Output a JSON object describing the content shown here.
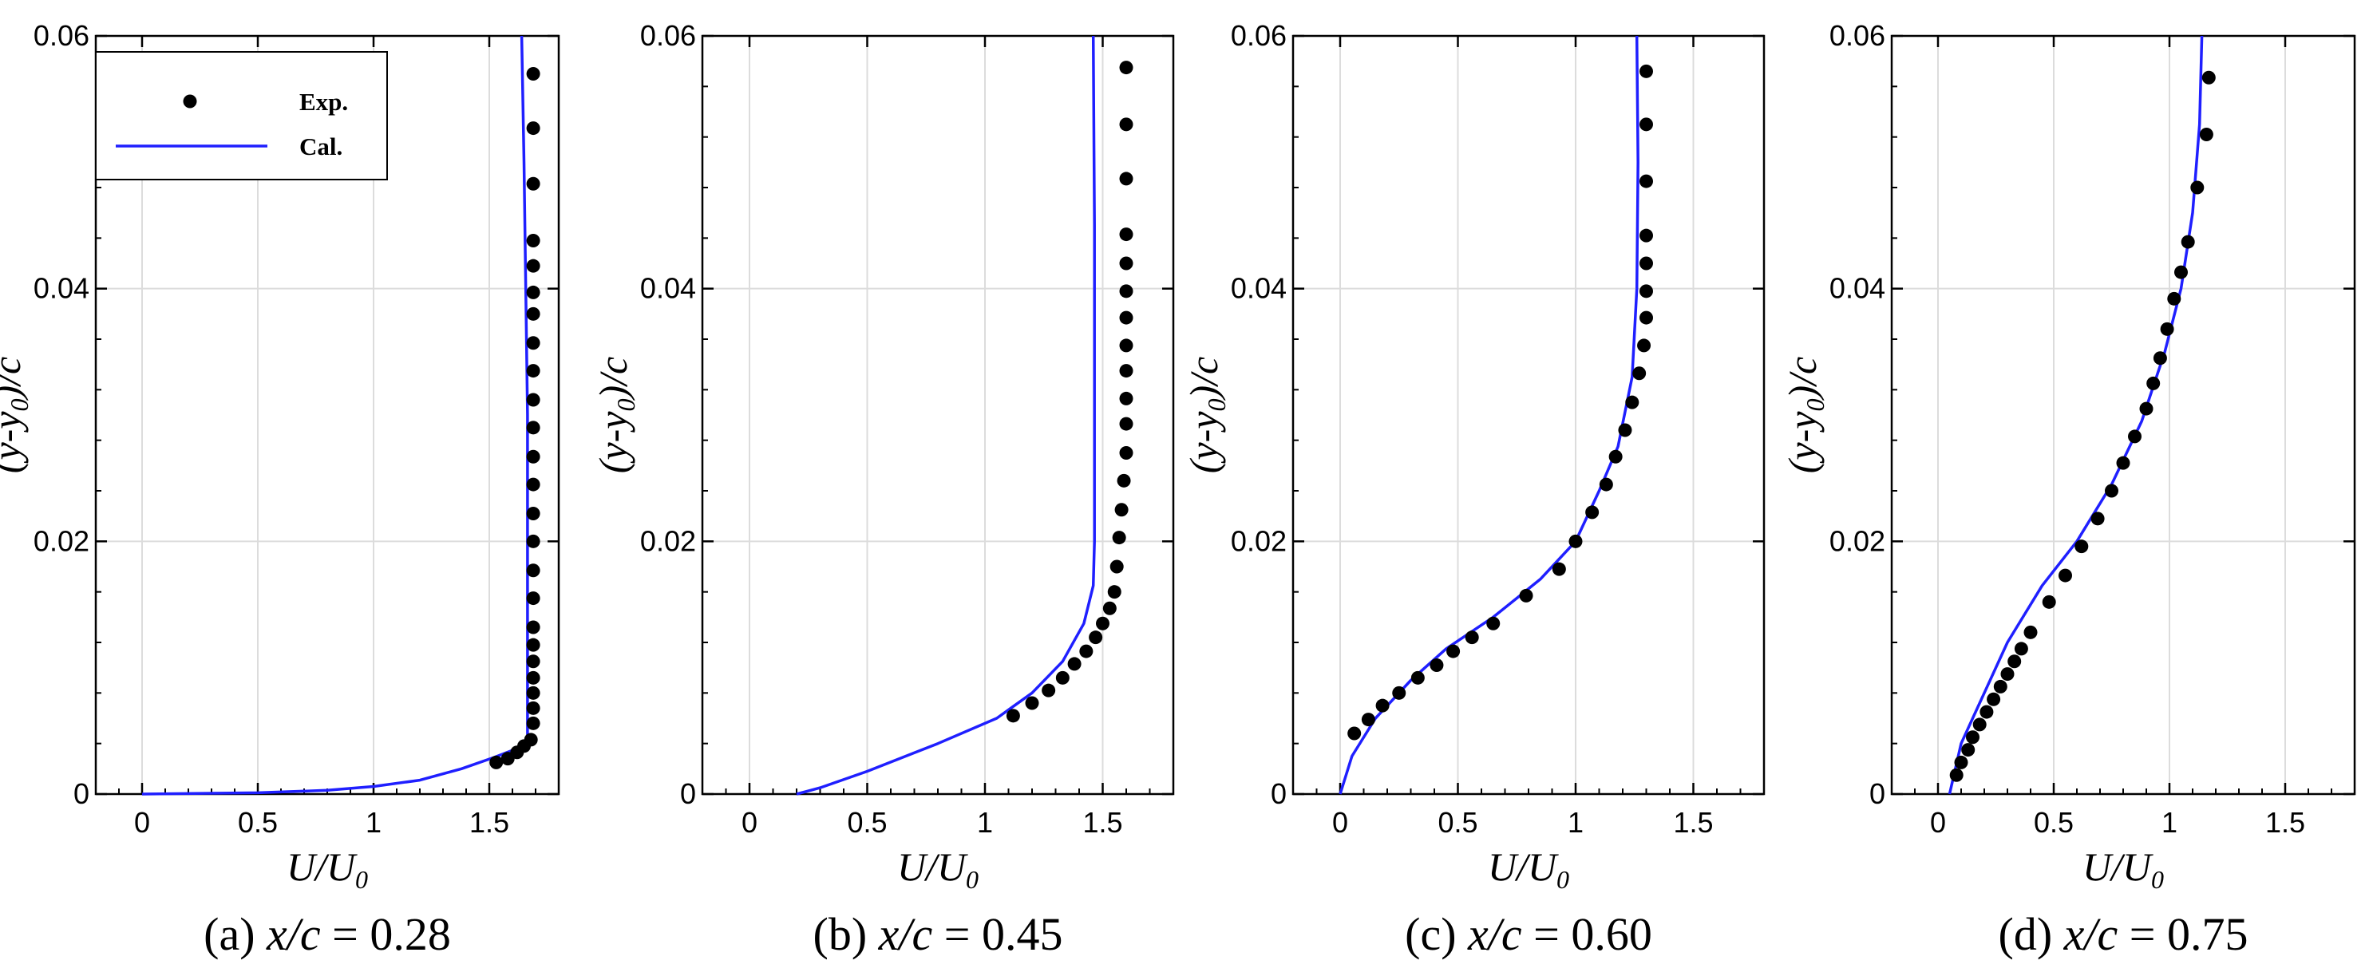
{
  "chart_data": [
    {
      "type": "scatter+line",
      "caption": {
        "prefix": "(a) ",
        "var": "x/c",
        "suffix": " = 0.28"
      },
      "xlabel": {
        "base": "U/U",
        "sub": "0"
      },
      "ylabel": {
        "pre": "(y-y",
        "sub": "0",
        "post": ")/c"
      },
      "xlim": [
        -0.2,
        1.8
      ],
      "ylim": [
        0,
        0.06
      ],
      "xticks": [
        "0",
        "0.5",
        "1",
        "1.5"
      ],
      "xtick_values": [
        0,
        0.5,
        1,
        1.5
      ],
      "yticks": [
        "0",
        "0.02",
        "0.04",
        "0.06"
      ],
      "ytick_values": [
        0,
        0.02,
        0.04,
        0.06
      ],
      "grid": true,
      "legend": {
        "show": true,
        "placement": "top-left",
        "exp_label": "Exp.",
        "cal_label": "Cal."
      },
      "exp": [
        [
          1.53,
          0.0025
        ],
        [
          1.58,
          0.0028
        ],
        [
          1.62,
          0.0033
        ],
        [
          1.65,
          0.0038
        ],
        [
          1.68,
          0.0043
        ],
        [
          1.69,
          0.0056
        ],
        [
          1.69,
          0.0068
        ],
        [
          1.69,
          0.008
        ],
        [
          1.69,
          0.0092
        ],
        [
          1.69,
          0.0105
        ],
        [
          1.69,
          0.0118
        ],
        [
          1.69,
          0.0132
        ],
        [
          1.69,
          0.0155
        ],
        [
          1.69,
          0.0177
        ],
        [
          1.69,
          0.02
        ],
        [
          1.69,
          0.0222
        ],
        [
          1.69,
          0.0245
        ],
        [
          1.69,
          0.0267
        ],
        [
          1.69,
          0.029
        ],
        [
          1.69,
          0.0312
        ],
        [
          1.69,
          0.0335
        ],
        [
          1.69,
          0.0357
        ],
        [
          1.69,
          0.038
        ],
        [
          1.69,
          0.0397
        ],
        [
          1.69,
          0.0418
        ],
        [
          1.69,
          0.0438
        ],
        [
          1.69,
          0.0483
        ],
        [
          1.69,
          0.0527
        ],
        [
          1.69,
          0.057
        ]
      ],
      "cal": [
        [
          0,
          0
        ],
        [
          0.5,
          0.0001
        ],
        [
          0.8,
          0.0003
        ],
        [
          1.0,
          0.0006
        ],
        [
          1.2,
          0.0011
        ],
        [
          1.38,
          0.002
        ],
        [
          1.52,
          0.0029
        ],
        [
          1.62,
          0.0036
        ],
        [
          1.665,
          0.0042
        ],
        [
          1.665,
          0.01
        ],
        [
          1.665,
          0.03
        ],
        [
          1.65,
          0.05
        ],
        [
          1.64,
          0.06
        ]
      ],
      "colors": {
        "cal": "#1f1fff",
        "exp": "#000000"
      }
    },
    {
      "type": "scatter+line",
      "caption": {
        "prefix": "(b) ",
        "var": "x/c",
        "suffix": " = 0.45"
      },
      "xlabel": {
        "base": "U/U",
        "sub": "0"
      },
      "ylabel": {
        "pre": "(y-y",
        "sub": "0",
        "post": ")/c"
      },
      "xlim": [
        -0.2,
        1.8
      ],
      "ylim": [
        0,
        0.06
      ],
      "xticks": [
        "0",
        "0.5",
        "1",
        "1.5"
      ],
      "xtick_values": [
        0,
        0.5,
        1,
        1.5
      ],
      "yticks": [
        "0",
        "0.02",
        "0.04",
        "0.06"
      ],
      "ytick_values": [
        0,
        0.02,
        0.04,
        0.06
      ],
      "grid": true,
      "legend": {
        "show": false
      },
      "exp": [
        [
          1.12,
          0.0062
        ],
        [
          1.2,
          0.0072
        ],
        [
          1.27,
          0.0082
        ],
        [
          1.33,
          0.0092
        ],
        [
          1.38,
          0.0103
        ],
        [
          1.43,
          0.0113
        ],
        [
          1.47,
          0.0124
        ],
        [
          1.5,
          0.0135
        ],
        [
          1.53,
          0.0147
        ],
        [
          1.55,
          0.016
        ],
        [
          1.56,
          0.018
        ],
        [
          1.57,
          0.0203
        ],
        [
          1.58,
          0.0225
        ],
        [
          1.59,
          0.0248
        ],
        [
          1.6,
          0.027
        ],
        [
          1.6,
          0.0293
        ],
        [
          1.6,
          0.0313
        ],
        [
          1.6,
          0.0335
        ],
        [
          1.6,
          0.0355
        ],
        [
          1.6,
          0.0377
        ],
        [
          1.6,
          0.0398
        ],
        [
          1.6,
          0.042
        ],
        [
          1.6,
          0.0443
        ],
        [
          1.6,
          0.0487
        ],
        [
          1.6,
          0.053
        ],
        [
          1.6,
          0.0575
        ]
      ],
      "cal": [
        [
          0.2,
          0
        ],
        [
          0.3,
          0.0005
        ],
        [
          0.5,
          0.0018
        ],
        [
          0.8,
          0.004
        ],
        [
          1.05,
          0.006
        ],
        [
          1.2,
          0.008
        ],
        [
          1.33,
          0.0105
        ],
        [
          1.42,
          0.0135
        ],
        [
          1.46,
          0.0165
        ],
        [
          1.465,
          0.02
        ],
        [
          1.465,
          0.03
        ],
        [
          1.465,
          0.045
        ],
        [
          1.46,
          0.06
        ]
      ],
      "colors": {
        "cal": "#1f1fff",
        "exp": "#000000"
      }
    },
    {
      "type": "scatter+line",
      "caption": {
        "prefix": "(c) ",
        "var": "x/c",
        "suffix": " = 0.60"
      },
      "xlabel": {
        "base": "U/U",
        "sub": "0"
      },
      "ylabel": {
        "pre": "(y-y",
        "sub": "0",
        "post": ")/c"
      },
      "xlim": [
        -0.2,
        1.8
      ],
      "ylim": [
        0,
        0.06
      ],
      "xticks": [
        "0",
        "0.5",
        "1",
        "1.5"
      ],
      "xtick_values": [
        0,
        0.5,
        1,
        1.5
      ],
      "yticks": [
        "0",
        "0.02",
        "0.04",
        "0.06"
      ],
      "ytick_values": [
        0,
        0.02,
        0.04,
        0.06
      ],
      "grid": true,
      "legend": {
        "show": false
      },
      "exp": [
        [
          0.06,
          0.0048
        ],
        [
          0.12,
          0.0059
        ],
        [
          0.18,
          0.007
        ],
        [
          0.25,
          0.008
        ],
        [
          0.33,
          0.0092
        ],
        [
          0.41,
          0.0102
        ],
        [
          0.48,
          0.0113
        ],
        [
          0.56,
          0.0124
        ],
        [
          0.65,
          0.0135
        ],
        [
          0.79,
          0.0157
        ],
        [
          0.93,
          0.0178
        ],
        [
          1.0,
          0.02
        ],
        [
          1.07,
          0.0223
        ],
        [
          1.13,
          0.0245
        ],
        [
          1.17,
          0.0267
        ],
        [
          1.21,
          0.0288
        ],
        [
          1.24,
          0.031
        ],
        [
          1.27,
          0.0333
        ],
        [
          1.29,
          0.0355
        ],
        [
          1.3,
          0.0377
        ],
        [
          1.3,
          0.0398
        ],
        [
          1.3,
          0.042
        ],
        [
          1.3,
          0.0442
        ],
        [
          1.3,
          0.0485
        ],
        [
          1.3,
          0.053
        ],
        [
          1.3,
          0.0572
        ]
      ],
      "cal": [
        [
          0,
          0
        ],
        [
          0.05,
          0.003
        ],
        [
          0.15,
          0.006
        ],
        [
          0.3,
          0.009
        ],
        [
          0.45,
          0.0115
        ],
        [
          0.65,
          0.014
        ],
        [
          0.85,
          0.017
        ],
        [
          1.0,
          0.02
        ],
        [
          1.1,
          0.024
        ],
        [
          1.18,
          0.0275
        ],
        [
          1.24,
          0.033
        ],
        [
          1.26,
          0.04
        ],
        [
          1.265,
          0.05
        ],
        [
          1.26,
          0.06
        ]
      ],
      "colors": {
        "cal": "#1f1fff",
        "exp": "#000000"
      }
    },
    {
      "type": "scatter+line",
      "caption": {
        "prefix": "(d) ",
        "var": "x/c",
        "suffix": " = 0.75"
      },
      "xlabel": {
        "base": "U/U",
        "sub": "0"
      },
      "ylabel": {
        "pre": "(y-y",
        "sub": "0",
        "post": ")/c"
      },
      "xlim": [
        -0.2,
        1.8
      ],
      "ylim": [
        0,
        0.06
      ],
      "xticks": [
        "0",
        "0.5",
        "1",
        "1.5"
      ],
      "xtick_values": [
        0,
        0.5,
        1,
        1.5
      ],
      "yticks": [
        "0",
        "0.02",
        "0.04",
        "0.06"
      ],
      "ytick_values": [
        0,
        0.02,
        0.04,
        0.06
      ],
      "grid": true,
      "legend": {
        "show": false
      },
      "exp": [
        [
          0.08,
          0.0015
        ],
        [
          0.1,
          0.0025
        ],
        [
          0.13,
          0.0035
        ],
        [
          0.15,
          0.0045
        ],
        [
          0.18,
          0.0055
        ],
        [
          0.21,
          0.0065
        ],
        [
          0.24,
          0.0075
        ],
        [
          0.27,
          0.0085
        ],
        [
          0.3,
          0.0095
        ],
        [
          0.33,
          0.0105
        ],
        [
          0.36,
          0.0115
        ],
        [
          0.4,
          0.0128
        ],
        [
          0.48,
          0.0152
        ],
        [
          0.55,
          0.0173
        ],
        [
          0.62,
          0.0196
        ],
        [
          0.69,
          0.0218
        ],
        [
          0.75,
          0.024
        ],
        [
          0.8,
          0.0262
        ],
        [
          0.85,
          0.0283
        ],
        [
          0.9,
          0.0305
        ],
        [
          0.93,
          0.0325
        ],
        [
          0.96,
          0.0345
        ],
        [
          0.99,
          0.0368
        ],
        [
          1.02,
          0.0392
        ],
        [
          1.05,
          0.0413
        ],
        [
          1.08,
          0.0437
        ],
        [
          1.12,
          0.048
        ],
        [
          1.16,
          0.0522
        ],
        [
          1.17,
          0.0567
        ]
      ],
      "cal": [
        [
          0.05,
          0
        ],
        [
          0.1,
          0.004
        ],
        [
          0.2,
          0.008
        ],
        [
          0.3,
          0.012
        ],
        [
          0.45,
          0.0165
        ],
        [
          0.6,
          0.02
        ],
        [
          0.75,
          0.0245
        ],
        [
          0.88,
          0.0295
        ],
        [
          0.98,
          0.035
        ],
        [
          1.05,
          0.04
        ],
        [
          1.1,
          0.046
        ],
        [
          1.13,
          0.053
        ],
        [
          1.14,
          0.06
        ]
      ],
      "colors": {
        "cal": "#1f1fff",
        "exp": "#000000"
      }
    }
  ]
}
